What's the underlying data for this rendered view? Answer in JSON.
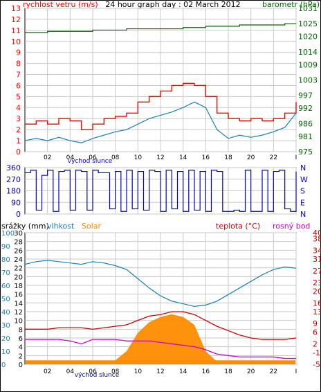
{
  "title": "24 hour graph day : 02 March 2012",
  "labels": {
    "wind": "rychlost vetru (m/s)",
    "baro": "barometr (hPa)",
    "sunrise": "východ slunce",
    "rain": "srážky (mm)",
    "humidity": "vlhkost",
    "solar": "Solar",
    "temp": "teplota (°C)",
    "dew": "rosný bod"
  },
  "colors": {
    "wind": "#ff0000",
    "wind_avg": "#1a7fb5",
    "baro": "#006600",
    "direction": "#0000cc",
    "humidity": "#1a7fb5",
    "solar": "#ff8c00",
    "temp": "#cc0000",
    "dew": "#cc00cc",
    "rain_axis": "#1a7fb5",
    "grid": "#c8c8c8"
  },
  "chart_data": [
    {
      "name": "wind_and_pressure",
      "type": "line",
      "x_ticks": [
        "02",
        "04",
        "06",
        "08",
        "10",
        "12",
        "14",
        "16",
        "18",
        "20",
        "22",
        "I"
      ],
      "y_left": {
        "label": "rychlost vetru (m/s)",
        "ticks": [
          0,
          1,
          2,
          3,
          4,
          5,
          6,
          7,
          8,
          9,
          10,
          11,
          12,
          13
        ]
      },
      "y_right": {
        "label": "barometr (hPa)",
        "ticks": [
          975,
          981,
          986,
          992,
          997,
          1003,
          1009,
          1014,
          1020,
          1025,
          1031
        ]
      },
      "series": [
        {
          "name": "gust",
          "hour": [
            0,
            1,
            2,
            3,
            4,
            5,
            6,
            7,
            8,
            9,
            10,
            11,
            12,
            13,
            14,
            15,
            16,
            17,
            18,
            19,
            20,
            21,
            22,
            23,
            24
          ],
          "values": [
            2.5,
            2.8,
            2.5,
            3.0,
            2.8,
            2.0,
            2.5,
            3.0,
            3.2,
            3.5,
            4.5,
            5.0,
            5.5,
            6.0,
            6.2,
            6.0,
            5.0,
            3.5,
            3.0,
            2.8,
            3.0,
            2.8,
            3.0,
            3.5,
            4.5
          ]
        },
        {
          "name": "average",
          "hour": [
            0,
            1,
            2,
            3,
            4,
            5,
            6,
            7,
            8,
            9,
            10,
            11,
            12,
            13,
            14,
            15,
            16,
            17,
            18,
            19,
            20,
            21,
            22,
            23,
            24
          ],
          "values": [
            1.0,
            1.2,
            1.0,
            1.3,
            1.0,
            0.8,
            1.2,
            1.5,
            1.8,
            2.0,
            2.5,
            3.0,
            3.3,
            3.6,
            4.0,
            4.5,
            4.0,
            2.0,
            1.2,
            1.5,
            1.3,
            1.5,
            1.8,
            2.2,
            3.5
          ]
        },
        {
          "name": "pressure",
          "hour": [
            0,
            1,
            2,
            3,
            4,
            5,
            6,
            7,
            8,
            9,
            10,
            11,
            12,
            13,
            14,
            15,
            16,
            17,
            18,
            19,
            20,
            21,
            22,
            23,
            24
          ],
          "values": [
            1021.5,
            1021.5,
            1022,
            1022,
            1022,
            1022,
            1022.5,
            1022.5,
            1022.5,
            1023,
            1023,
            1023,
            1023,
            1023,
            1023.5,
            1023.5,
            1024,
            1024,
            1024,
            1024.5,
            1024.5,
            1024.5,
            1024.5,
            1025,
            1025
          ]
        }
      ]
    },
    {
      "name": "wind_direction",
      "type": "scatter",
      "x_ticks": [
        "02",
        "04",
        "06",
        "08",
        "10",
        "12",
        "14",
        "16",
        "18",
        "20",
        "22",
        "I"
      ],
      "y_left": {
        "ticks": [
          0,
          90,
          180,
          270,
          360
        ]
      },
      "y_right": {
        "ticks": [
          "N",
          "W",
          "S",
          "E",
          "N"
        ]
      },
      "series": [
        {
          "name": "direction",
          "hour": [
            0,
            0.5,
            1,
            1.5,
            2,
            2.5,
            3,
            3.5,
            4,
            4.5,
            5,
            5.5,
            6,
            6.5,
            7,
            7.5,
            8,
            8.5,
            9,
            9.5,
            10,
            10.5,
            11,
            11.5,
            12,
            12.5,
            13,
            13.5,
            14,
            14.5,
            15,
            15.5,
            16,
            16.5,
            17,
            17.5,
            18,
            18.5,
            19,
            19.5,
            20,
            20.5,
            21,
            21.5,
            22,
            22.5,
            23,
            23.5,
            24
          ],
          "values": [
            320,
            340,
            30,
            300,
            340,
            20,
            330,
            340,
            30,
            340,
            330,
            30,
            340,
            320,
            320,
            40,
            330,
            20,
            340,
            40,
            330,
            30,
            340,
            330,
            20,
            340,
            40,
            330,
            20,
            340,
            30,
            330,
            20,
            340,
            330,
            20,
            20,
            30,
            20,
            340,
            20,
            20,
            340,
            20,
            330,
            340,
            40,
            20,
            330
          ]
        }
      ]
    },
    {
      "name": "temperature_humidity_solar",
      "type": "line",
      "x_ticks": [
        "02",
        "04",
        "06",
        "08",
        "10",
        "12",
        "14",
        "16",
        "18",
        "20",
        "22",
        "I"
      ],
      "y_left_rain": {
        "label": "srážky (mm)",
        "ticks": [
          0,
          2,
          4,
          6,
          8,
          10,
          12,
          14,
          16,
          18,
          20,
          22,
          24,
          26,
          28,
          30
        ]
      },
      "y_left_humidity": {
        "label": "vlhkost",
        "ticks": [
          0,
          10,
          20,
          30,
          40,
          50,
          60,
          70,
          80,
          90,
          100
        ]
      },
      "y_right": {
        "label": "teplota (°C)",
        "ticks": [
          -5,
          -1,
          2,
          6,
          9,
          13,
          16,
          20,
          23,
          27,
          31,
          34,
          38,
          40
        ]
      },
      "series": [
        {
          "name": "humidity",
          "hour": [
            0,
            1,
            2,
            3,
            4,
            5,
            6,
            7,
            8,
            9,
            10,
            11,
            12,
            13,
            14,
            15,
            16,
            17,
            18,
            19,
            20,
            21,
            22,
            23,
            24
          ],
          "values": [
            76,
            78,
            79,
            78,
            77,
            76,
            78,
            77,
            75,
            72,
            65,
            58,
            52,
            48,
            46,
            44,
            45,
            48,
            53,
            58,
            63,
            68,
            72,
            74,
            73
          ]
        },
        {
          "name": "temperature",
          "hour": [
            0,
            1,
            2,
            3,
            4,
            5,
            6,
            7,
            8,
            9,
            10,
            11,
            12,
            13,
            14,
            15,
            16,
            17,
            18,
            19,
            20,
            21,
            22,
            23,
            24
          ],
          "values": [
            7,
            7,
            7,
            7.5,
            7.5,
            7.5,
            7,
            7.5,
            8,
            8.5,
            10,
            11.5,
            12,
            13,
            13,
            12,
            10,
            8,
            6.5,
            5,
            4,
            3.5,
            3.5,
            3.5,
            4
          ]
        },
        {
          "name": "dew_point",
          "hour": [
            0,
            1,
            2,
            3,
            4,
            5,
            6,
            7,
            8,
            9,
            10,
            11,
            12,
            13,
            14,
            15,
            16,
            17,
            18,
            19,
            20,
            21,
            22,
            23,
            24
          ],
          "values": [
            3.5,
            3.5,
            3.5,
            3.5,
            3,
            2,
            3.5,
            3.5,
            3.5,
            3,
            3,
            3,
            2.5,
            2,
            1.5,
            1,
            0,
            -1.5,
            -2,
            -2.5,
            -2.5,
            -2.5,
            -2.5,
            -3,
            -3
          ]
        },
        {
          "name": "solar",
          "hour": [
            0,
            1,
            2,
            3,
            4,
            5,
            6,
            7,
            8,
            9,
            10,
            11,
            12,
            13,
            14,
            15,
            16,
            17,
            18,
            19,
            20,
            21,
            22,
            23,
            24
          ],
          "values": [
            0,
            0,
            0,
            0,
            0,
            0,
            0,
            0,
            3,
            10,
            24,
            32,
            36,
            38,
            36,
            30,
            10,
            2,
            0,
            0,
            0,
            0,
            0,
            0,
            0
          ]
        },
        {
          "name": "rain",
          "hour": [
            0,
            24
          ],
          "values": [
            0,
            0
          ]
        }
      ]
    }
  ]
}
